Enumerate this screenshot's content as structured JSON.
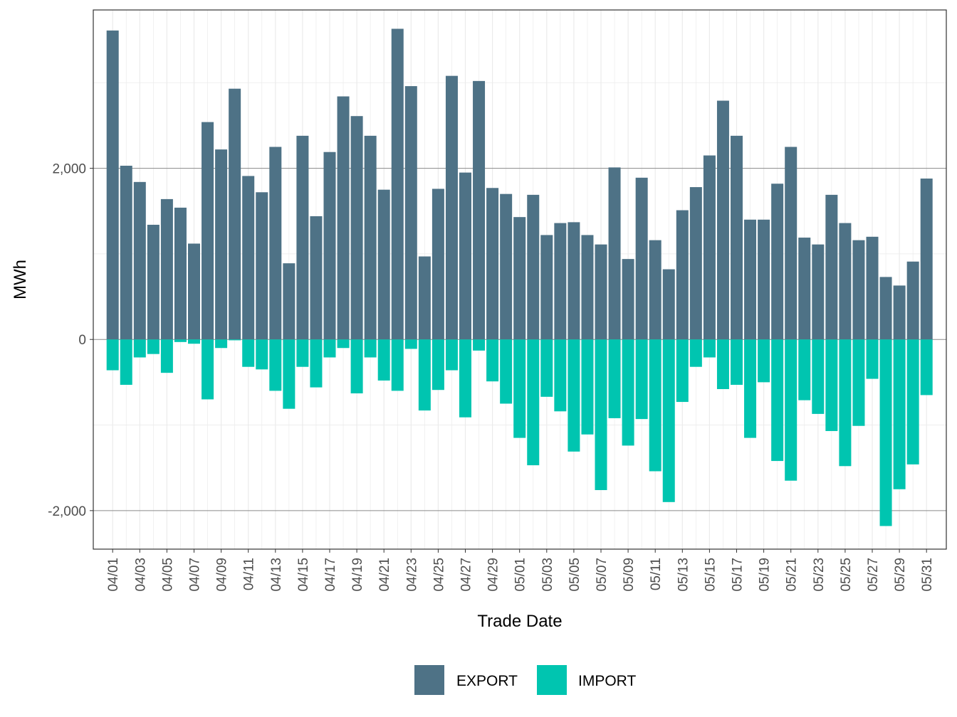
{
  "chart_data": {
    "type": "bar",
    "stacked": "diverging",
    "title": "",
    "xlabel": "Trade Date",
    "ylabel": "MWh",
    "ylim": [
      -2450,
      3850
    ],
    "yticks": [
      -2000,
      0,
      2000
    ],
    "ytick_labels": [
      "-2,000",
      "0",
      "2,000"
    ],
    "categories": [
      "04/01",
      "04/02",
      "04/03",
      "04/04",
      "04/05",
      "04/06",
      "04/07",
      "04/08",
      "04/09",
      "04/10",
      "04/11",
      "04/12",
      "04/13",
      "04/14",
      "04/15",
      "04/16",
      "04/17",
      "04/18",
      "04/19",
      "04/20",
      "04/21",
      "04/22",
      "04/23",
      "04/24",
      "04/25",
      "04/26",
      "04/27",
      "04/28",
      "04/29",
      "04/30",
      "05/01",
      "05/02",
      "05/03",
      "05/04",
      "05/05",
      "05/06",
      "05/07",
      "05/08",
      "05/09",
      "05/10",
      "05/11",
      "05/12",
      "05/13",
      "05/14",
      "05/15",
      "05/16",
      "05/17",
      "05/18",
      "05/19",
      "05/20",
      "05/21",
      "05/22",
      "05/23",
      "05/24",
      "05/25",
      "05/26",
      "05/27",
      "05/28",
      "05/29",
      "05/30",
      "05/31"
    ],
    "xtick_labels": [
      "04/01",
      "04/03",
      "04/05",
      "04/07",
      "04/09",
      "04/11",
      "04/13",
      "04/15",
      "04/17",
      "04/19",
      "04/21",
      "04/23",
      "04/25",
      "04/27",
      "04/29",
      "05/01",
      "05/03",
      "05/05",
      "05/07",
      "05/09",
      "05/11",
      "05/13",
      "05/15",
      "05/17",
      "05/19",
      "05/21",
      "05/23",
      "05/25",
      "05/27",
      "05/29",
      "05/31"
    ],
    "series": [
      {
        "name": "EXPORT",
        "color": "#4E7286",
        "values": [
          3610,
          2030,
          1840,
          1340,
          1640,
          1540,
          1120,
          2540,
          2220,
          2930,
          1910,
          1720,
          2250,
          890,
          2380,
          1440,
          2190,
          2840,
          2610,
          2380,
          1750,
          3630,
          2960,
          970,
          1760,
          3080,
          1950,
          3020,
          1770,
          1700,
          1430,
          1690,
          1220,
          1360,
          1370,
          1220,
          1110,
          2010,
          940,
          1890,
          1160,
          820,
          1510,
          1780,
          2150,
          2790,
          2380,
          1400,
          1400,
          1820,
          2250,
          1190,
          1110,
          1690,
          1360,
          1160,
          1200,
          730,
          630,
          910,
          1880
        ]
      },
      {
        "name": "IMPORT",
        "color": "#00C5B0",
        "values": [
          -360,
          -530,
          -210,
          -170,
          -390,
          -30,
          -50,
          -700,
          -100,
          -10,
          -320,
          -350,
          -600,
          -810,
          -320,
          -560,
          -210,
          -100,
          -630,
          -210,
          -480,
          -600,
          -110,
          -830,
          -590,
          -360,
          -910,
          -130,
          -490,
          -750,
          -1150,
          -1470,
          -670,
          -840,
          -1310,
          -1110,
          -1760,
          -920,
          -1240,
          -930,
          -1540,
          -1900,
          -730,
          -320,
          -210,
          -580,
          -530,
          -1150,
          -500,
          -1420,
          -1650,
          -710,
          -870,
          -1070,
          -1480,
          -1010,
          -460,
          -2180,
          -1750,
          -1460,
          -650
        ]
      }
    ],
    "legend": {
      "position": "bottom",
      "entries": [
        "EXPORT",
        "IMPORT"
      ]
    },
    "grid": true
  }
}
